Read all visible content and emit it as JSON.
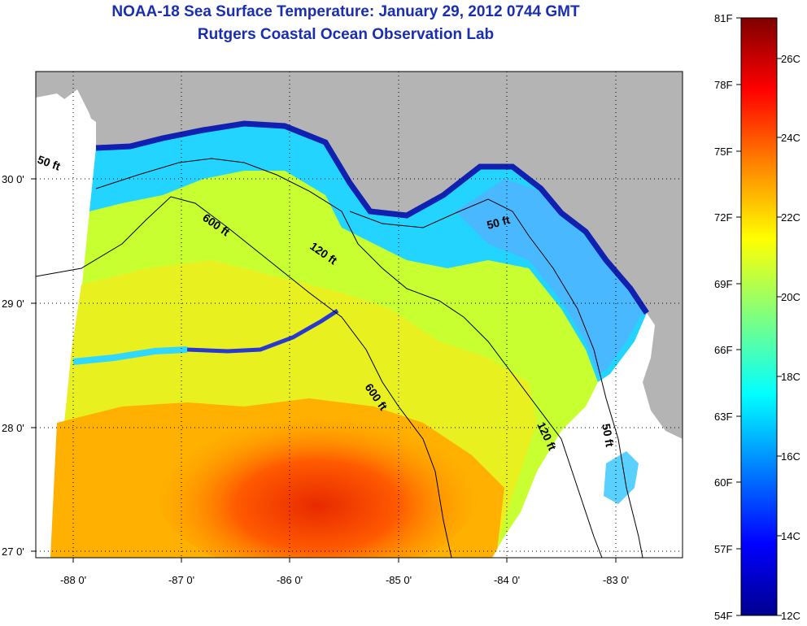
{
  "title": "NOAA-18 Sea Surface Temperature:  January 29, 2012 0744 GMT",
  "subtitle": "Rutgers Coastal Ocean Observation Lab",
  "map": {
    "lon_ticks": [
      "-88 0'",
      "-87 0'",
      "-86 0'",
      "-85 0'",
      "-84 0'",
      "-83 0'"
    ],
    "lat_ticks": [
      "30 0'",
      "29 0'",
      "28 0'",
      "27 0'"
    ],
    "lon_range": [
      -88.35,
      -82.35
    ],
    "lat_range": [
      26.95,
      30.85
    ],
    "grid": "dotted",
    "land_color": "#b4b4b4",
    "contour_labels": [
      "50 ft",
      "600 ft",
      "120 ft",
      "50 ft",
      "600 ft",
      "120 ft",
      "50 ft"
    ]
  },
  "colorbar": {
    "fahrenheit": [
      "81F",
      "78F",
      "75F",
      "72F",
      "69F",
      "66F",
      "63F",
      "60F",
      "57F",
      "54F"
    ],
    "celsius": [
      "26C",
      "24C",
      "22C",
      "20C",
      "18C",
      "16C",
      "14C",
      "12C"
    ],
    "colors": [
      "#00008f",
      "#0000ff",
      "#007fff",
      "#00ffff",
      "#7fff7f",
      "#ffff00",
      "#ff7f00",
      "#ff0000",
      "#7f0000"
    ]
  }
}
